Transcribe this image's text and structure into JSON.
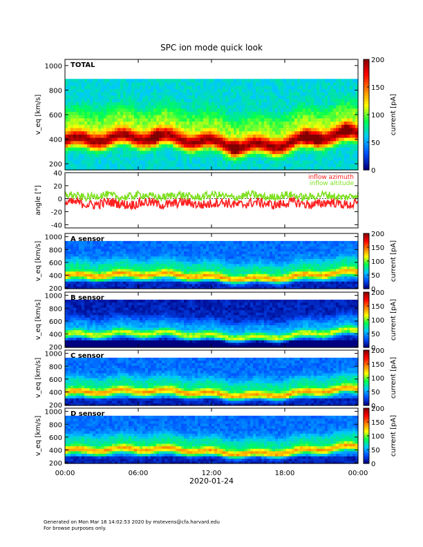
{
  "figure": {
    "title": "SPC ion mode quick look",
    "date_label": "2020-01-24",
    "footer_line1": "Generated on Mon Mar 16 14:02:53 2020 by mstevens@cfa.harvard.edu",
    "footer_line2": "For browse purposes only."
  },
  "chart_data": [
    {
      "type": "heatmap",
      "panel_label": "TOTAL",
      "ylabel": "v_eq [km/s]",
      "xlim_hours": [
        0,
        24
      ],
      "ylim": [
        150,
        1050
      ],
      "yticks": [
        200,
        400,
        600,
        800,
        1000
      ],
      "colorbar": {
        "label": "current [pA]",
        "ticks": [
          0,
          50,
          100,
          150,
          200
        ],
        "range": [
          0,
          200
        ]
      },
      "grid": false,
      "data_ceiling_kms": 880,
      "hot_spots_hours": [
        7.4,
        13.9,
        19.8,
        20.6,
        23.0
      ]
    },
    {
      "type": "line",
      "ylabel": "angle [°]",
      "ylim": [
        -45,
        40
      ],
      "yticks": [
        -40,
        -20,
        0,
        20,
        40
      ],
      "legend_placement": "top-right",
      "series": [
        {
          "name": "inflow azimuth",
          "color": "#ff2020",
          "typical_range_deg": [
            -15,
            0
          ]
        },
        {
          "name": "inflow altitude",
          "color": "#7fe020",
          "typical_range_deg": [
            -2,
            10
          ]
        }
      ]
    },
    {
      "type": "heatmap",
      "panel_label": "A sensor",
      "ylabel": "v_eq [km/s]",
      "ylim": [
        190,
        1050
      ],
      "yticks": [
        200,
        400,
        600,
        800,
        1000
      ],
      "colorbar": {
        "label": "current [pA]",
        "ticks": [
          0,
          50,
          100,
          150,
          200
        ],
        "range": [
          0,
          200
        ]
      }
    },
    {
      "type": "heatmap",
      "panel_label": "B sensor",
      "ylabel": "v_eq [km/s]",
      "ylim": [
        190,
        1050
      ],
      "yticks": [
        200,
        400,
        600,
        800,
        1000
      ],
      "colorbar": {
        "label": "current [pA]",
        "ticks": [
          0,
          50,
          100,
          150,
          200
        ],
        "range": [
          0,
          200
        ]
      }
    },
    {
      "type": "heatmap",
      "panel_label": "C sensor",
      "ylabel": "v_eq [km/s]",
      "ylim": [
        190,
        1050
      ],
      "yticks": [
        200,
        400,
        600,
        800,
        1000
      ],
      "colorbar": {
        "label": "current [pA]",
        "ticks": [
          0,
          50,
          100,
          150,
          200
        ],
        "range": [
          0,
          200
        ]
      }
    },
    {
      "type": "heatmap",
      "panel_label": "D sensor",
      "ylabel": "v_eq [km/s]",
      "ylim": [
        190,
        1050
      ],
      "yticks": [
        200,
        400,
        600,
        800,
        1000
      ],
      "colorbar": {
        "label": "current [pA]",
        "ticks": [
          0,
          50,
          100,
          150,
          200
        ],
        "range": [
          0,
          200
        ]
      }
    }
  ],
  "time_axis": {
    "tick_labels": [
      "00:00",
      "06:00",
      "12:00",
      "18:00",
      "00:00"
    ],
    "tick_hours": [
      0,
      6,
      12,
      18,
      24
    ]
  },
  "colors": {
    "colormap": [
      "#000080",
      "#0050ff",
      "#00c8ff",
      "#00ff50",
      "#ffff00",
      "#ff8000",
      "#ff0000",
      "#800000"
    ]
  }
}
